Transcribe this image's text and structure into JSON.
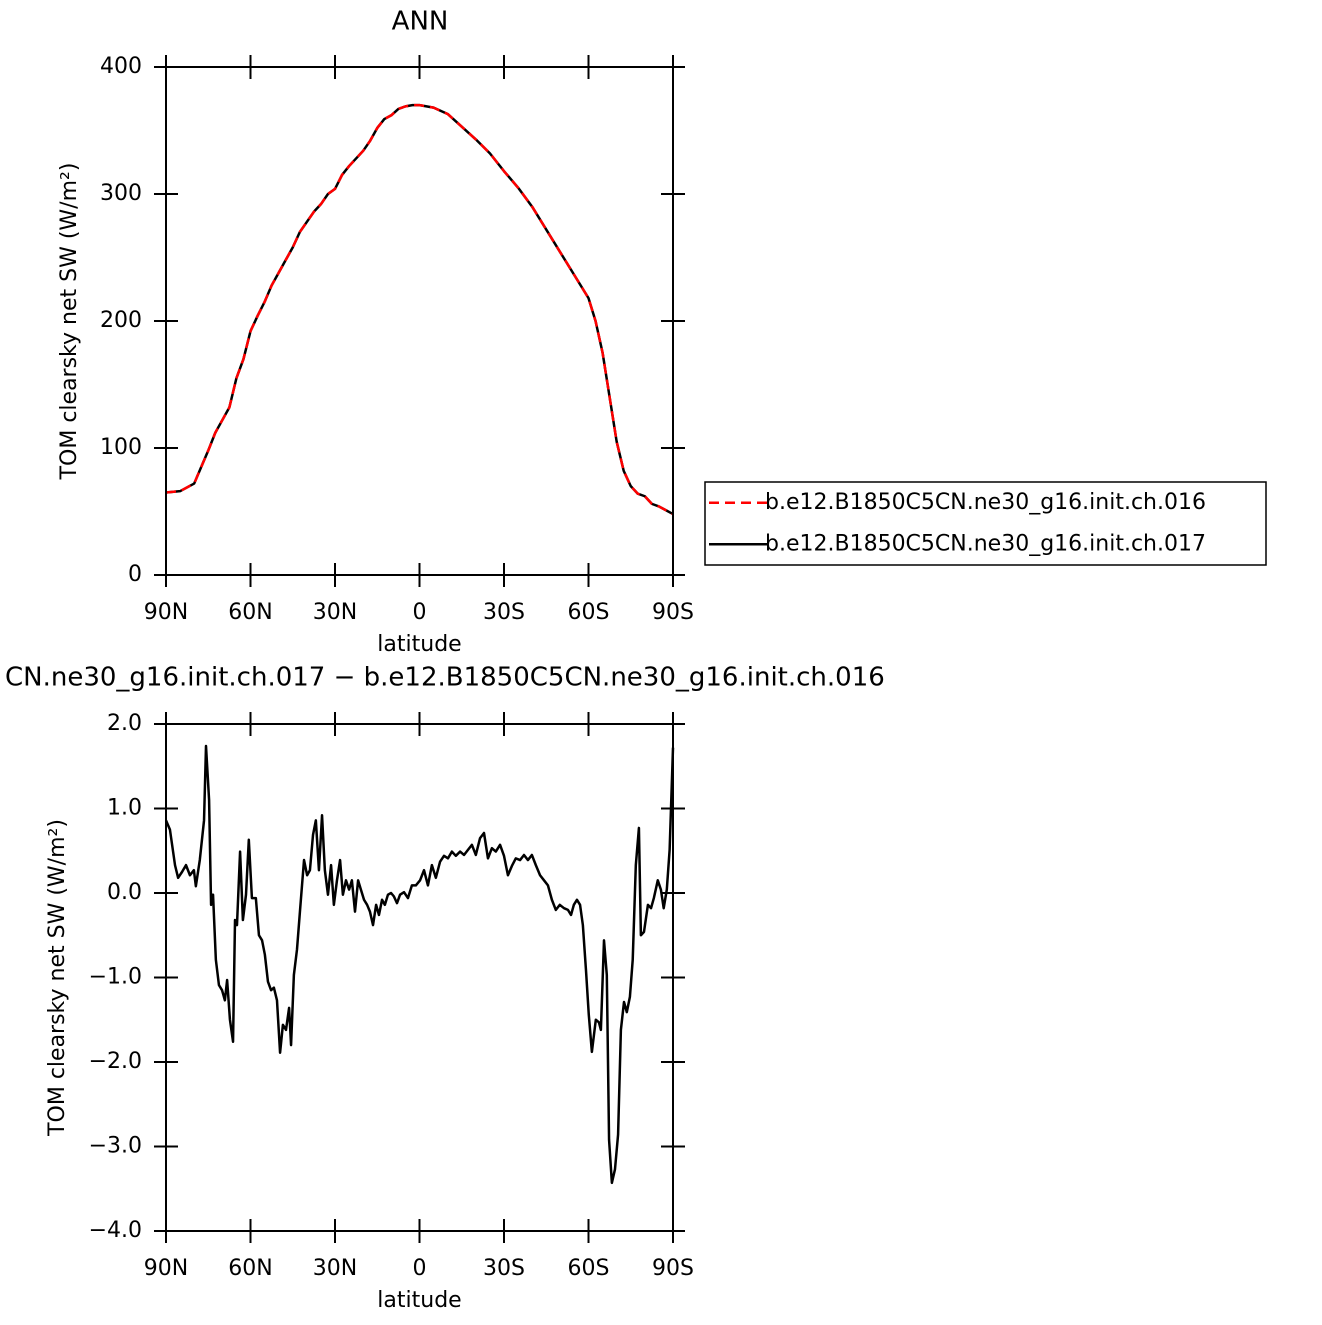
{
  "chart_data": [
    {
      "type": "line",
      "title": "ANN",
      "x_label": "latitude",
      "y_label": "TOM clearsky net SW (W/m²)",
      "x": [
        90,
        85,
        80,
        77.5,
        75,
        72.5,
        70,
        67.5,
        65,
        62.5,
        60,
        57.5,
        55,
        52.5,
        50,
        47.5,
        45,
        42.5,
        40,
        37.5,
        35,
        32.5,
        30,
        27.5,
        25,
        22.5,
        20,
        17.5,
        15,
        12.5,
        10,
        7.5,
        5,
        2.5,
        0,
        -5,
        -10,
        -15,
        -20,
        -25,
        -30,
        -35,
        -40,
        -45,
        -50,
        -55,
        -60,
        -62.5,
        -65,
        -67.5,
        -70,
        -72.5,
        -75,
        -77.5,
        -80,
        -82.5,
        -85,
        -87.5,
        -90
      ],
      "series": [
        {
          "name": "b.e12.B1850C5CN.ne30_g16.init.ch.016",
          "color": "#ff0000",
          "line_style": "dashed",
          "values": [
            65,
            66,
            72,
            85,
            98,
            112,
            122,
            132,
            155,
            170,
            192,
            204,
            215,
            228,
            238,
            248,
            258,
            270,
            278,
            286,
            292,
            300,
            304,
            315,
            322,
            328,
            334,
            342,
            352,
            359,
            362,
            367,
            369,
            370,
            370,
            368,
            363,
            353,
            343,
            332,
            318,
            305,
            290,
            272,
            254,
            236,
            218,
            200,
            175,
            140,
            105,
            82,
            70,
            64,
            62,
            56,
            54,
            51,
            48
          ]
        },
        {
          "name": "b.e12.B1850C5CN.ne30_g16.init.ch.017",
          "color": "#000000",
          "line_style": "solid",
          "values": [
            65,
            66,
            72,
            85,
            98,
            112,
            122,
            132,
            155,
            170,
            192,
            204,
            215,
            228,
            238,
            248,
            258,
            270,
            278,
            286,
            292,
            300,
            304,
            315,
            322,
            328,
            334,
            342,
            352,
            359,
            362,
            367,
            369,
            370,
            370,
            368,
            363,
            353,
            343,
            332,
            318,
            305,
            290,
            272,
            254,
            236,
            218,
            200,
            175,
            140,
            105,
            82,
            70,
            64,
            62,
            56,
            54,
            51,
            48
          ]
        }
      ],
      "xlim": [
        90,
        -90
      ],
      "xticks": [
        {
          "value": 90,
          "label": "90N"
        },
        {
          "value": 60,
          "label": "60N"
        },
        {
          "value": 30,
          "label": "30N"
        },
        0,
        {
          "value": -30,
          "label": "30S"
        },
        {
          "value": -60,
          "label": "60S"
        },
        {
          "value": -90,
          "label": "90S"
        }
      ],
      "ylim": [
        0,
        400
      ],
      "yticks": [
        0,
        100,
        200,
        300,
        400
      ],
      "legend": "right"
    },
    {
      "type": "line",
      "title": "CN.ne30_g16.init.ch.017 − b.e12.B1850C5CN.ne30_g16.init.ch.016",
      "x_label": "latitude",
      "y_label": "TOM clearsky net SW (W/m²)",
      "color": "#000000",
      "x": [
        90,
        88.6,
        86.8,
        85.7,
        84.3,
        82.9,
        81.5,
        80.1,
        79.4,
        78,
        76.5,
        75.8,
        74.7,
        74,
        73.3,
        72.3,
        71.2,
        70.1,
        69.1,
        68.3,
        67.3,
        66.2,
        65.5,
        64.8,
        63.7,
        62.7,
        61.6,
        60.6,
        59.5,
        58.1,
        57,
        55.9,
        54.9,
        53.8,
        52.7,
        51.7,
        50.6,
        49.5,
        48.5,
        47.4,
        46.3,
        45.6,
        44.6,
        43.5,
        42.4,
        41,
        39.9,
        38.9,
        37.8,
        36.8,
        35.7,
        34.6,
        33.6,
        32.5,
        31.4,
        30.4,
        29.3,
        28.2,
        27.2,
        26.1,
        25,
        24,
        22.9,
        21.8,
        20.8,
        19.7,
        18.6,
        17.6,
        16.5,
        15.4,
        14.4,
        13.3,
        12.3,
        11.2,
        10.1,
        9.1,
        8,
        6.9,
        5.5,
        4.1,
        2.7,
        1.3,
        -0.2,
        -1.6,
        -3,
        -4.4,
        -5.8,
        -7.3,
        -8.7,
        -10.1,
        -11.5,
        -12.9,
        -14.4,
        -15.8,
        -17.2,
        -18.6,
        -20,
        -21.5,
        -22.9,
        -24.3,
        -25.7,
        -27.1,
        -28.6,
        -30,
        -31.4,
        -32.8,
        -34.2,
        -35.7,
        -37.1,
        -38.5,
        -39.9,
        -41.3,
        -42.8,
        -44.2,
        -45.6,
        -47,
        -48.4,
        -49.8,
        -51.3,
        -52.7,
        -53.8,
        -54.8,
        -55.9,
        -57,
        -58,
        -59.1,
        -60.1,
        -61.2,
        -62.6,
        -63.7,
        -64.4,
        -65.5,
        -66.5,
        -67.3,
        -68.3,
        -69.4,
        -70.5,
        -71.5,
        -72.6,
        -73.6,
        -74.7,
        -75.7,
        -76.8,
        -77.9,
        -78.6,
        -79.7,
        -81.1,
        -82.2,
        -83.2,
        -84.6,
        -85.7,
        -86.7,
        -87.8,
        -88.8,
        -90
      ],
      "values": [
        0.86,
        0.75,
        0.33,
        0.18,
        0.25,
        0.33,
        0.21,
        0.27,
        0.08,
        0.39,
        0.86,
        1.74,
        1.1,
        -0.14,
        -0.02,
        -0.79,
        -1.09,
        -1.15,
        -1.27,
        -1.03,
        -1.5,
        -1.76,
        -0.32,
        -0.38,
        0.49,
        -0.32,
        -0.02,
        0.63,
        -0.06,
        -0.06,
        -0.5,
        -0.56,
        -0.73,
        -1.05,
        -1.15,
        -1.12,
        -1.27,
        -1.89,
        -1.56,
        -1.62,
        -1.36,
        -1.8,
        -0.97,
        -0.67,
        -0.2,
        0.39,
        0.21,
        0.27,
        0.69,
        0.86,
        0.27,
        0.92,
        0.27,
        -0.02,
        0.33,
        -0.14,
        0.15,
        0.39,
        -0.02,
        0.15,
        0.04,
        0.15,
        -0.22,
        0.15,
        0.04,
        -0.08,
        -0.14,
        -0.22,
        -0.38,
        -0.14,
        -0.26,
        -0.08,
        -0.14,
        -0.02,
        0,
        -0.04,
        -0.12,
        -0.02,
        0.01,
        -0.06,
        0.09,
        0.09,
        0.15,
        0.27,
        0.09,
        0.33,
        0.18,
        0.37,
        0.44,
        0.41,
        0.49,
        0.44,
        0.49,
        0.45,
        0.51,
        0.57,
        0.45,
        0.65,
        0.71,
        0.41,
        0.53,
        0.49,
        0.57,
        0.44,
        0.21,
        0.32,
        0.41,
        0.39,
        0.45,
        0.39,
        0.45,
        0.33,
        0.21,
        0.15,
        0.09,
        -0.08,
        -0.2,
        -0.14,
        -0.18,
        -0.2,
        -0.26,
        -0.14,
        -0.08,
        -0.14,
        -0.38,
        -0.91,
        -1.44,
        -1.88,
        -1.5,
        -1.53,
        -1.62,
        -0.56,
        -0.97,
        -2.92,
        -3.43,
        -3.27,
        -2.86,
        -1.62,
        -1.29,
        -1.41,
        -1.23,
        -0.79,
        0.33,
        0.77,
        -0.5,
        -0.46,
        -0.14,
        -0.18,
        -0.06,
        0.15,
        0.04,
        -0.18,
        0.04,
        0.51,
        1.72
      ],
      "xlim": [
        90,
        -90
      ],
      "xticks": [
        {
          "value": 90,
          "label": "90N"
        },
        {
          "value": 60,
          "label": "60N"
        },
        {
          "value": 30,
          "label": "30N"
        },
        0,
        {
          "value": -30,
          "label": "30S"
        },
        {
          "value": -60,
          "label": "60S"
        },
        {
          "value": -90,
          "label": "90S"
        }
      ],
      "ylim": [
        -4,
        2
      ],
      "yticks": [
        {
          "value": -4,
          "label": "−4.0"
        },
        {
          "value": -3,
          "label": "−3.0"
        },
        {
          "value": -2,
          "label": "−2.0"
        },
        {
          "value": -1,
          "label": "−1.0"
        },
        {
          "value": 0,
          "label": "0.0"
        },
        {
          "value": 1,
          "label": "1.0"
        },
        {
          "value": 2,
          "label": "2.0"
        }
      ]
    }
  ]
}
